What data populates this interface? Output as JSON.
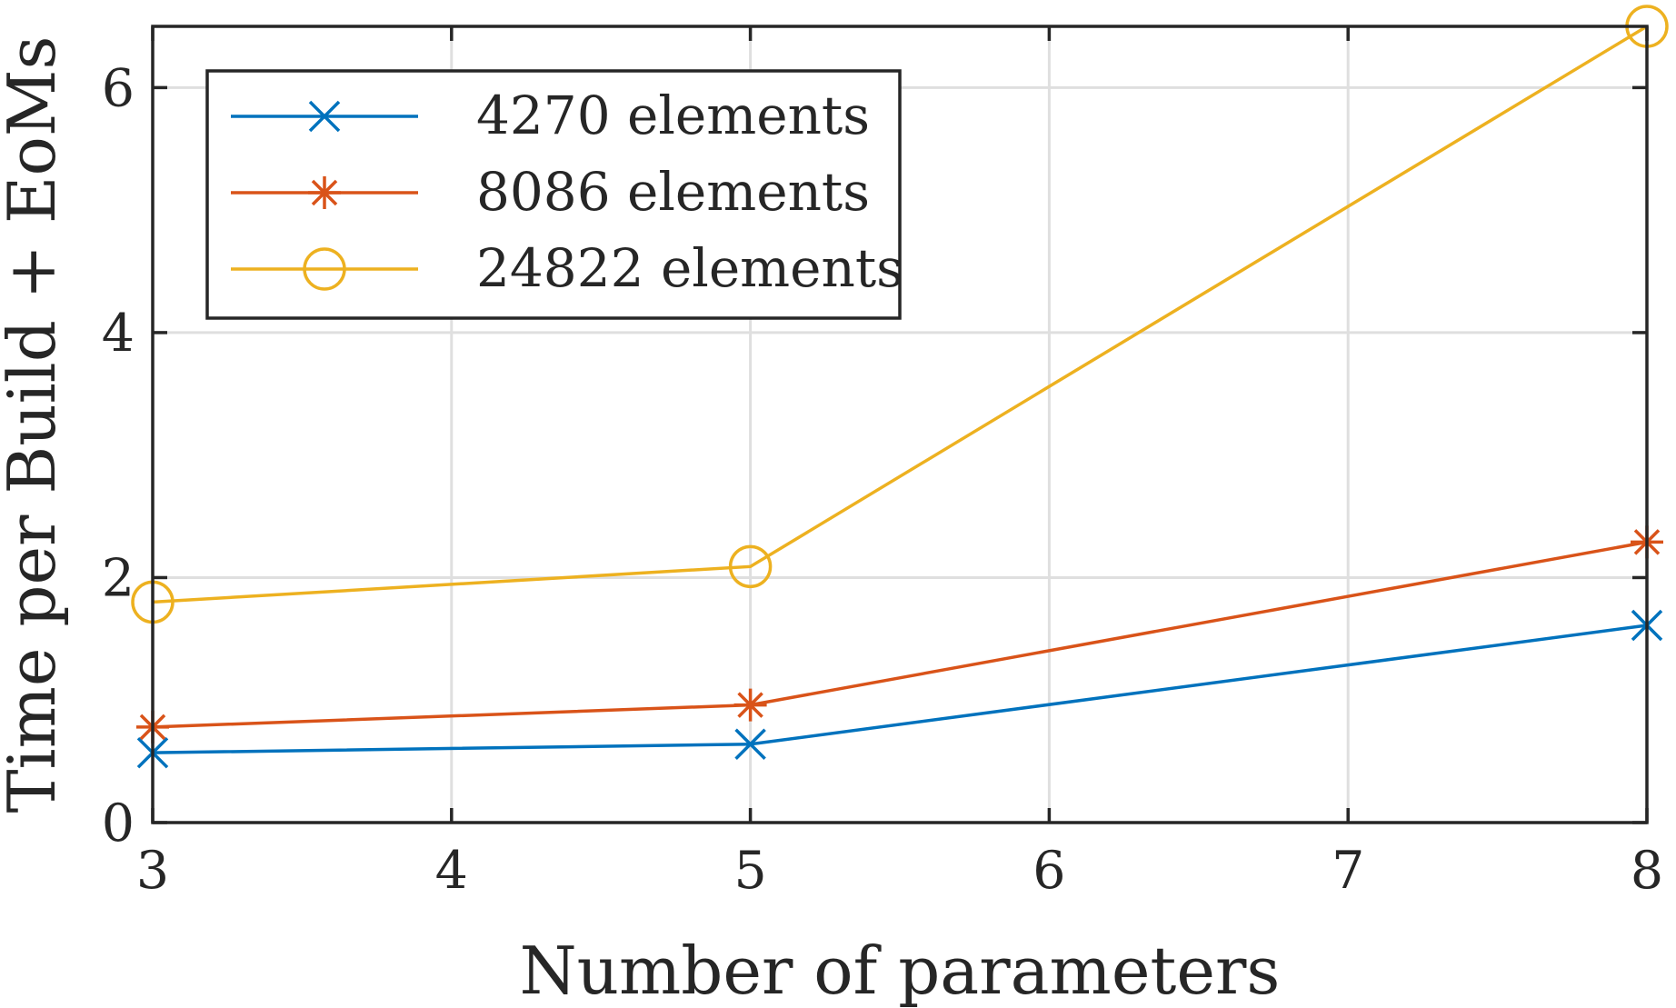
{
  "chart_data": {
    "type": "line",
    "title": "",
    "xlabel": "Number of parameters",
    "ylabel": "Time per Build + EoMs",
    "xlim": [
      3,
      8
    ],
    "ylim": [
      0,
      6.5
    ],
    "xticks": [
      3,
      4,
      5,
      6,
      7,
      8
    ],
    "yticks": [
      0,
      2,
      4,
      6
    ],
    "x_tick_labels": [
      "3",
      "4",
      "5",
      "6",
      "7",
      "8"
    ],
    "y_tick_labels": [
      "0",
      "2",
      "4",
      "6"
    ],
    "grid": true,
    "legend_position": "top-left",
    "series": [
      {
        "name": "4270 elements",
        "color": "#0072BD",
        "marker": "x",
        "x": [
          3,
          5,
          8
        ],
        "values": [
          0.57,
          0.64,
          1.61
        ]
      },
      {
        "name": "8086 elements",
        "color": "#D95319",
        "marker": "asterisk",
        "x": [
          3,
          5,
          8
        ],
        "values": [
          0.78,
          0.96,
          2.29
        ]
      },
      {
        "name": "24822 elements",
        "color": "#EDB120",
        "marker": "circle",
        "x": [
          3,
          5,
          8
        ],
        "values": [
          1.8,
          2.09,
          6.5
        ]
      }
    ]
  }
}
